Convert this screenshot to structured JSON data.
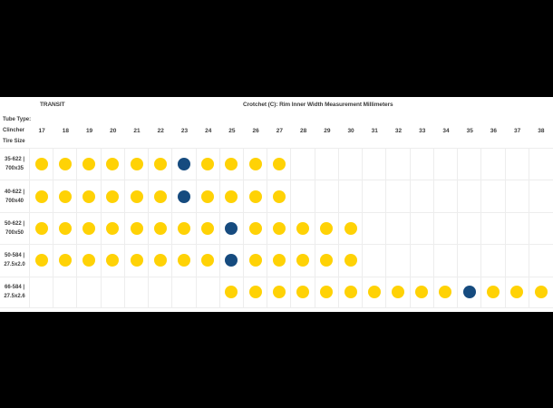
{
  "chart_data": {
    "type": "heatmap",
    "section_title_left": "TRANSIT",
    "section_title_right": "Crotchet (C): Rim Inner Width Measurement Millimeters",
    "row_axis_label_lines": [
      "Tube Type:",
      "Clincher",
      "Tire Size"
    ],
    "columns": [
      17,
      18,
      19,
      20,
      21,
      22,
      23,
      24,
      25,
      26,
      27,
      28,
      29,
      30,
      31,
      32,
      33,
      34,
      35,
      36,
      37,
      38
    ],
    "rows": [
      {
        "tire_size_line1": "35-622 |",
        "tire_size_line2": "700x35",
        "compatible_widths": [
          17,
          18,
          19,
          20,
          21,
          22,
          24,
          25,
          26,
          27
        ],
        "recommended_widths": [
          23
        ]
      },
      {
        "tire_size_line1": "40-622 |",
        "tire_size_line2": "700x40",
        "compatible_widths": [
          17,
          18,
          19,
          20,
          21,
          22,
          24,
          25,
          26,
          27
        ],
        "recommended_widths": [
          23
        ]
      },
      {
        "tire_size_line1": "50-622 |",
        "tire_size_line2": "700x50",
        "compatible_widths": [
          17,
          18,
          19,
          20,
          21,
          22,
          23,
          24,
          26,
          27,
          28,
          29,
          30
        ],
        "recommended_widths": [
          25
        ]
      },
      {
        "tire_size_line1": "50-584 |",
        "tire_size_line2": "27.5x2.0",
        "compatible_widths": [
          17,
          18,
          19,
          20,
          21,
          22,
          23,
          24,
          26,
          27,
          28,
          29,
          30
        ],
        "recommended_widths": [
          25
        ]
      },
      {
        "tire_size_line1": "66-584 |",
        "tire_size_line2": "27.5x2.6",
        "compatible_widths": [
          25,
          26,
          27,
          28,
          29,
          30,
          31,
          32,
          33,
          34,
          36,
          37,
          38
        ],
        "recommended_widths": [
          35
        ]
      }
    ],
    "legend": {
      "compatible_color": "#FFD205",
      "recommended_color": "#164B7F"
    },
    "layout": {
      "grid": true,
      "grid_color": "#ededed",
      "text_color": "#3c3c3c",
      "panel_background": "#ffffff",
      "letterbox_color": "#000000"
    }
  }
}
